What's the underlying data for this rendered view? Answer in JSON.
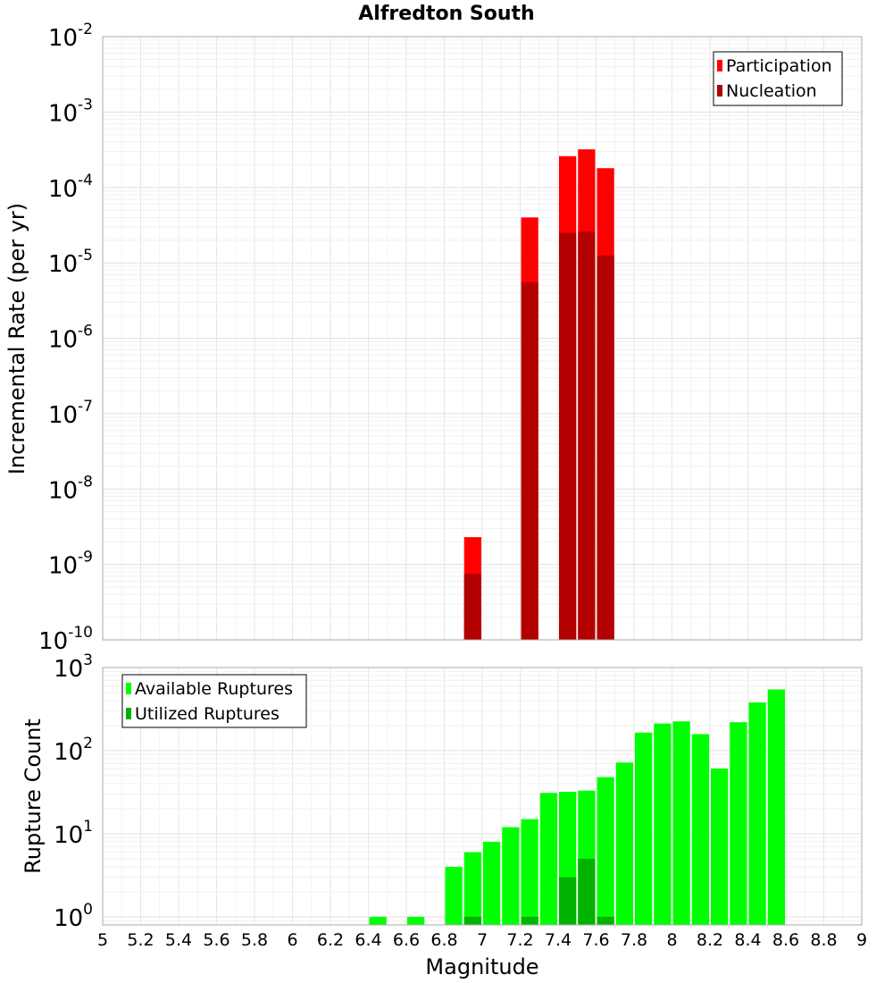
{
  "chart_data": [
    {
      "type": "bar",
      "title": "Alfredton South",
      "xlabel": "",
      "ylabel": "Incremental Rate (per yr)",
      "y_scale": "log",
      "ylim": [
        1e-10,
        0.01
      ],
      "xlim": [
        5,
        9
      ],
      "bin_width": 0.1,
      "grid": true,
      "legend_position": "top-right",
      "ytick_labels": [
        {
          "base": "10",
          "exp": "-2",
          "value": 0.01
        },
        {
          "base": "10",
          "exp": "-3",
          "value": 0.001
        },
        {
          "base": "10",
          "exp": "-4",
          "value": 0.0001
        },
        {
          "base": "10",
          "exp": "-5",
          "value": 1e-05
        },
        {
          "base": "10",
          "exp": "-6",
          "value": 1e-06
        },
        {
          "base": "10",
          "exp": "-7",
          "value": 1e-07
        },
        {
          "base": "10",
          "exp": "-8",
          "value": 1e-08
        },
        {
          "base": "10",
          "exp": "-9",
          "value": 1e-09
        },
        {
          "base": "10",
          "exp": "-10",
          "value": 1e-10
        }
      ],
      "series": [
        {
          "name": "Participation",
          "color": "#ff0000",
          "points": [
            {
              "x": 6.95,
              "y": 2.3e-09
            },
            {
              "x": 7.25,
              "y": 4e-05
            },
            {
              "x": 7.45,
              "y": 0.00026
            },
            {
              "x": 7.55,
              "y": 0.00032
            },
            {
              "x": 7.65,
              "y": 0.00018
            }
          ]
        },
        {
          "name": "Nucleation",
          "color": "#b30000",
          "points": [
            {
              "x": 6.95,
              "y": 7.5e-10
            },
            {
              "x": 7.25,
              "y": 5.5e-06
            },
            {
              "x": 7.45,
              "y": 2.5e-05
            },
            {
              "x": 7.55,
              "y": 2.6e-05
            },
            {
              "x": 7.65,
              "y": 1.25e-05
            }
          ]
        }
      ]
    },
    {
      "type": "bar",
      "title": "",
      "xlabel": "Magnitude",
      "ylabel": "Rupture Count",
      "y_scale": "log",
      "ylim": [
        0.8,
        1000
      ],
      "xlim": [
        5,
        9
      ],
      "bin_width": 0.1,
      "grid": true,
      "legend_position": "top-left",
      "xtick_labels": [
        "5",
        "5.2",
        "5.4",
        "5.6",
        "5.8",
        "6",
        "6.2",
        "6.4",
        "6.6",
        "6.8",
        "7",
        "7.2",
        "7.4",
        "7.6",
        "7.8",
        "8",
        "8.2",
        "8.4",
        "8.6",
        "8.8",
        "9"
      ],
      "ytick_labels": [
        {
          "base": "10",
          "exp": "3",
          "value": 1000
        },
        {
          "base": "10",
          "exp": "2",
          "value": 100
        },
        {
          "base": "10",
          "exp": "1",
          "value": 10
        },
        {
          "base": "10",
          "exp": "0",
          "value": 1
        }
      ],
      "series": [
        {
          "name": "Available Ruptures",
          "color": "#00ff00",
          "points": [
            {
              "x": 6.45,
              "y": 1
            },
            {
              "x": 6.65,
              "y": 1
            },
            {
              "x": 6.85,
              "y": 4
            },
            {
              "x": 6.95,
              "y": 6
            },
            {
              "x": 7.05,
              "y": 8
            },
            {
              "x": 7.15,
              "y": 12
            },
            {
              "x": 7.25,
              "y": 15
            },
            {
              "x": 7.35,
              "y": 31
            },
            {
              "x": 7.45,
              "y": 32
            },
            {
              "x": 7.55,
              "y": 33
            },
            {
              "x": 7.65,
              "y": 48
            },
            {
              "x": 7.75,
              "y": 72
            },
            {
              "x": 7.85,
              "y": 165
            },
            {
              "x": 7.95,
              "y": 212
            },
            {
              "x": 8.05,
              "y": 225
            },
            {
              "x": 8.15,
              "y": 158
            },
            {
              "x": 8.25,
              "y": 61
            },
            {
              "x": 8.35,
              "y": 220
            },
            {
              "x": 8.45,
              "y": 380
            },
            {
              "x": 8.55,
              "y": 545
            }
          ]
        },
        {
          "name": "Utilized Ruptures",
          "color": "#00b300",
          "points": [
            {
              "x": 6.95,
              "y": 1
            },
            {
              "x": 7.25,
              "y": 1
            },
            {
              "x": 7.45,
              "y": 3
            },
            {
              "x": 7.55,
              "y": 5
            },
            {
              "x": 7.65,
              "y": 1
            }
          ]
        }
      ]
    }
  ]
}
